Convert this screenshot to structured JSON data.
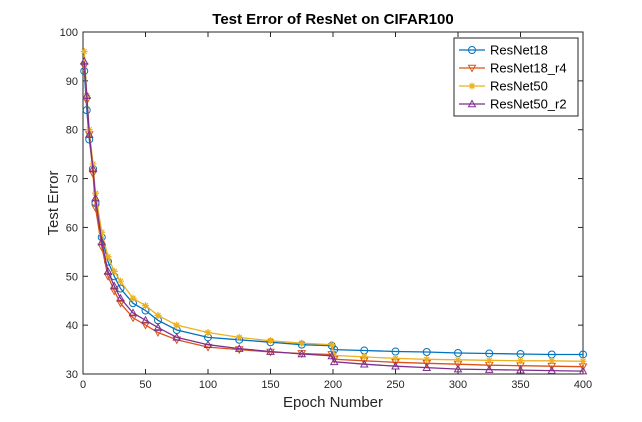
{
  "chart_data": {
    "type": "line",
    "title": "Test Error of ResNet on CIFAR100",
    "xlabel": "Epoch Number",
    "ylabel": "Test Error",
    "xlim": [
      0,
      400
    ],
    "ylim": [
      30,
      100
    ],
    "xticks": [
      0,
      50,
      100,
      150,
      200,
      250,
      300,
      350,
      400
    ],
    "yticks": [
      30,
      40,
      50,
      60,
      70,
      80,
      90,
      100
    ],
    "grid": false,
    "legend_position": "top-right",
    "series": [
      {
        "name": "ResNet18",
        "color": "#0072BD",
        "marker": "circle",
        "x": [
          1,
          3,
          5,
          8,
          10,
          15,
          20,
          25,
          30,
          40,
          50,
          60,
          75,
          100,
          125,
          150,
          175,
          199,
          201,
          225,
          250,
          275,
          300,
          325,
          350,
          375,
          400
        ],
        "y": [
          92,
          84,
          78,
          72,
          65,
          58,
          53,
          50,
          47.5,
          44.5,
          43,
          41,
          39,
          37.5,
          37,
          36.5,
          36,
          35.8,
          35,
          34.8,
          34.6,
          34.5,
          34.3,
          34.2,
          34.1,
          34.0,
          34.0
        ]
      },
      {
        "name": "ResNet18_r4",
        "color": "#D95319",
        "marker": "triangle-down",
        "x": [
          1,
          3,
          5,
          8,
          10,
          15,
          20,
          25,
          30,
          40,
          50,
          60,
          75,
          100,
          125,
          150,
          175,
          199,
          201,
          225,
          250,
          275,
          300,
          325,
          350,
          375,
          400
        ],
        "y": [
          93,
          86,
          79,
          71,
          64,
          56,
          50,
          47,
          44.5,
          41.5,
          40,
          38.5,
          37,
          35.5,
          35,
          34.5,
          34.2,
          34.0,
          33,
          32.7,
          32.4,
          32.2,
          32.0,
          31.8,
          31.7,
          31.6,
          31.5
        ]
      },
      {
        "name": "ResNet50",
        "color": "#EDB120",
        "marker": "asterisk",
        "x": [
          1,
          3,
          5,
          8,
          10,
          15,
          20,
          25,
          30,
          40,
          50,
          60,
          75,
          100,
          125,
          150,
          175,
          199,
          201,
          225,
          250,
          275,
          300,
          325,
          350,
          375,
          400
        ],
        "y": [
          96,
          87,
          80,
          73,
          67,
          59,
          54,
          51,
          49,
          45.5,
          44,
          42,
          40,
          38.5,
          37.5,
          36.8,
          36.3,
          36.0,
          33.8,
          33.5,
          33.2,
          33.0,
          32.9,
          32.8,
          32.7,
          32.7,
          32.6
        ]
      },
      {
        "name": "ResNet50_r2",
        "color": "#7E2F8E",
        "marker": "triangle-up",
        "x": [
          1,
          3,
          5,
          8,
          10,
          15,
          20,
          25,
          30,
          40,
          50,
          60,
          75,
          100,
          125,
          150,
          175,
          199,
          201,
          225,
          250,
          275,
          300,
          325,
          350,
          375,
          400
        ],
        "y": [
          94,
          87,
          79,
          72,
          66,
          57,
          51,
          48,
          45.5,
          42.5,
          41,
          39.5,
          37.5,
          36,
          35.2,
          34.6,
          34.1,
          33.7,
          32.5,
          32.0,
          31.6,
          31.3,
          31.0,
          30.9,
          30.8,
          30.7,
          30.6
        ]
      }
    ]
  }
}
